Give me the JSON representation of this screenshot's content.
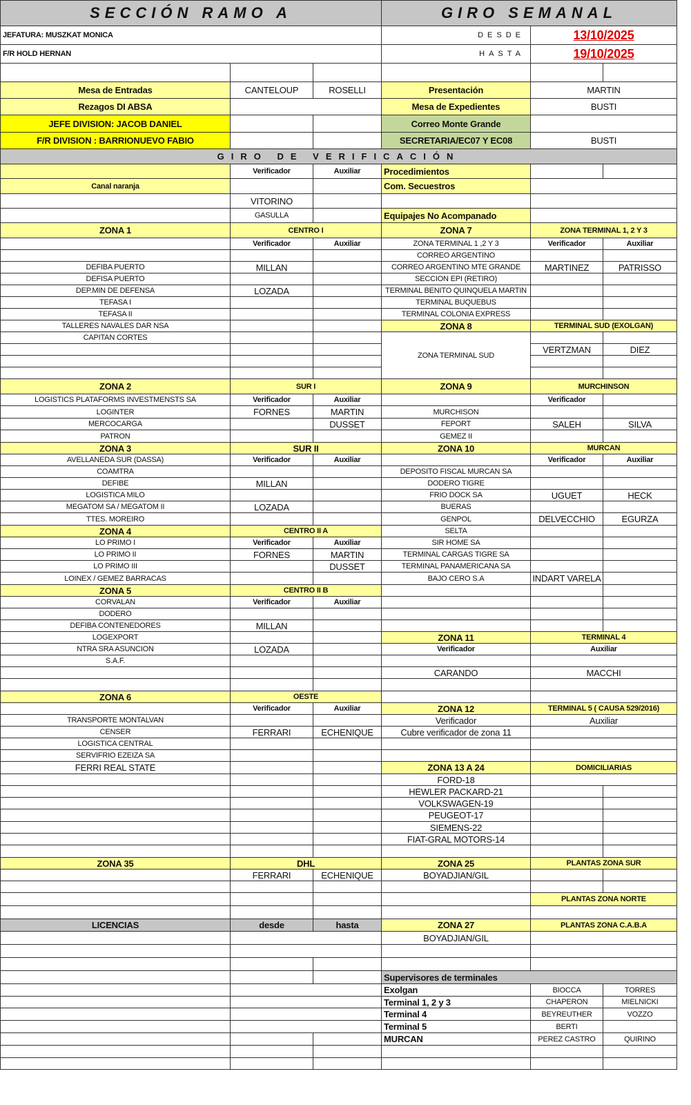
{
  "colors": {
    "light_yellow": "#ffff9c",
    "yellow": "#ffff00",
    "gray": "#c6c6c6",
    "green": "#c4d79b",
    "date_red": "#e00000"
  },
  "rows": [
    [
      "SECCIÓN RAMO  A",
      "GIRO SEMANAL"
    ],
    [
      "JEFATURA: MUSZKAT MONICA",
      "DESDE",
      "13/10/2025"
    ],
    [
      "F/R HOLD HERNAN",
      "HASTA",
      "19/10/2025"
    ],
    [
      "",
      "",
      "",
      "",
      "",
      ""
    ],
    [
      "Mesa de Entradas",
      "CANTELOUP",
      "ROSELLI",
      "Presentación",
      "MARTIN"
    ],
    [
      "Rezagos DI ABSA",
      "",
      "Mesa de Expedientes",
      "BUSTI"
    ],
    [
      "JEFE DIVISION: JACOB DANIEL",
      "",
      "",
      "Correo Monte Grande",
      ""
    ],
    [
      "F/R DIVISION : BARRIONUEVO FABIO",
      "",
      "",
      "SECRETARIA/EC07 Y EC08",
      "BUSTI"
    ],
    [
      "GIRO DE VERIFICACIÓN"
    ],
    [
      "",
      "Verificador",
      "Auxiliar",
      "Procedimientos",
      "",
      ""
    ],
    [
      "Canal naranja",
      "",
      "",
      "Com. Secuestros",
      ""
    ],
    [
      "",
      "VITORINO",
      "",
      "",
      ""
    ],
    [
      "",
      "GASULLA",
      "",
      "Equipajes No Acompanado",
      ""
    ],
    [
      "ZONA 1",
      "CENTRO I",
      "ZONA 7",
      "ZONA TERMINAL 1, 2 Y 3"
    ],
    [
      "",
      "Verificador",
      "Auxiliar",
      "ZONA TERMINAL 1 ,2 Y 3",
      "Verificador",
      "Auxiliar"
    ],
    [
      "",
      "",
      "",
      "CORREO ARGENTINO",
      "",
      ""
    ],
    [
      "DEFIBA PUERTO",
      "MILLAN",
      "",
      "CORREO ARGENTINO MTE GRANDE",
      "MARTINEZ",
      "PATRISSO"
    ],
    [
      "DEFISA PUERTO",
      "",
      "",
      "SECCION EPI (RETIRO)",
      "",
      ""
    ],
    [
      "DEP.MIN DE DEFENSA",
      "LOZADA",
      "",
      "TERMINAL BENITO QUINQUELA MARTIN",
      "",
      ""
    ],
    [
      "TEFASA I",
      "",
      "",
      "TERMINAL BUQUEBUS",
      "",
      ""
    ],
    [
      "TEFASA II",
      "",
      "",
      "TERMINAL COLONIA EXPRESS",
      "",
      ""
    ],
    [
      "TALLERES NAVALES DAR NSA",
      "",
      "",
      "ZONA 8",
      "TERMINAL SUD (EXOLGAN)"
    ],
    [
      "CAPITAN CORTES",
      "",
      "",
      "ZONA TERMINAL SUD",
      "",
      ""
    ],
    [
      "",
      "",
      "",
      "VERTZMAN",
      "DIEZ"
    ],
    [
      "",
      "",
      "",
      "",
      ""
    ],
    [
      "",
      "",
      "",
      "",
      ""
    ],
    [
      "ZONA 2",
      "SUR I",
      "ZONA 9",
      "MURCHINSON"
    ],
    [
      "LOGISTICS PLATAFORMS INVESTMENSTS SA",
      "Verificador",
      "Auxiliar",
      "",
      "Verificador",
      ""
    ],
    [
      "LOGINTER",
      "FORNES",
      "MARTIN",
      "MURCHISON",
      "",
      ""
    ],
    [
      "MERCOCARGA",
      "",
      "DUSSET",
      "FEPORT",
      "SALEH",
      "SILVA"
    ],
    [
      "PATRON",
      "",
      "",
      "GEMEZ II",
      "",
      ""
    ],
    [
      "ZONA 3",
      "SUR II",
      "ZONA 10",
      "MURCAN"
    ],
    [
      "AVELLANEDA SUR (DASSA)",
      "Verificador",
      "Auxiliar",
      "",
      "Verificador",
      "Auxiliar"
    ],
    [
      "COAMTRA",
      "",
      "",
      "DEPOSITO FISCAL MURCAN SA",
      "",
      ""
    ],
    [
      "DEFIBE",
      "MILLAN",
      "",
      "DODERO TIGRE",
      "",
      ""
    ],
    [
      "LOGISTICA MILO",
      "",
      "",
      "FRIO DOCK SA",
      "UGUET",
      "HECK"
    ],
    [
      "MEGATOM SA / MEGATOM II",
      "LOZADA",
      "",
      "BUERAS",
      "",
      ""
    ],
    [
      "TTES. MOREIRO",
      "",
      "",
      "GENPOL",
      "DELVECCHIO",
      "EGURZA"
    ],
    [
      "ZONA 4",
      "CENTRO II A",
      "SELTA",
      "",
      ""
    ],
    [
      "LO PRIMO I",
      "Verificador",
      "Auxiliar",
      "SIR HOME SA",
      "",
      ""
    ],
    [
      "LO PRIMO II",
      "FORNES",
      "MARTIN",
      "TERMINAL CARGAS TIGRE SA",
      "",
      ""
    ],
    [
      "LO PRIMO III",
      "",
      "DUSSET",
      "TERMINAL PANAMERICANA SA",
      "",
      ""
    ],
    [
      "LOINEX / GEMEZ BARRACAS",
      "",
      "",
      "BAJO CERO S.A",
      "INDART VARELA",
      ""
    ],
    [
      "ZONA 5",
      "CENTRO II B",
      "",
      "",
      ""
    ],
    [
      "CORVALAN",
      "Verificador",
      "Auxiliar",
      "",
      "",
      ""
    ],
    [
      "DODERO",
      "",
      "",
      "",
      "",
      ""
    ],
    [
      "DEFIBA CONTENEDORES",
      "MILLAN",
      "",
      "",
      "",
      ""
    ],
    [
      "LOGEXPORT",
      "",
      "",
      "ZONA 11",
      "TERMINAL 4"
    ],
    [
      "NTRA SRA ASUNCION",
      "LOZADA",
      "",
      "Verificador",
      "Auxiliar"
    ],
    [
      "S.A.F.",
      "",
      "",
      "",
      ""
    ],
    [
      "",
      "",
      "",
      "CARANDO",
      "MACCHI"
    ],
    [
      "",
      "",
      "",
      "",
      ""
    ],
    [
      "ZONA 6",
      "OESTE",
      "",
      ""
    ],
    [
      "",
      "Verificador",
      "Auxiliar",
      "ZONA 12",
      "TERMINAL 5 ( CAUSA 529/2016)"
    ],
    [
      "TRANSPORTE MONTALVAN",
      "",
      "",
      "Verificador",
      "Auxiliar"
    ],
    [
      "CENSER",
      "FERRARI",
      "ECHENIQUE",
      "Cubre verificador de zona 11",
      ""
    ],
    [
      "LOGISTICA CENTRAL",
      "",
      "",
      "",
      ""
    ],
    [
      "SERVIFRIO EZEIZA SA",
      "",
      "",
      "",
      ""
    ],
    [
      "FERRI REAL STATE",
      "",
      "",
      "ZONA 13 A 24",
      "DOMICILIARIAS"
    ],
    [
      "",
      "",
      "",
      "FORD-18",
      ""
    ],
    [
      "",
      "",
      "",
      "HEWLER PACKARD-21",
      "",
      ""
    ],
    [
      "",
      "",
      "",
      "VOLKSWAGEN-19",
      "",
      ""
    ],
    [
      "",
      "",
      "",
      "PEUGEOT-17",
      "",
      ""
    ],
    [
      "",
      "",
      "",
      "SIEMENS-22",
      "",
      ""
    ],
    [
      "",
      "",
      "",
      "FIAT-GRAL MOTORS-14",
      "",
      ""
    ],
    [
      "",
      "",
      "",
      "",
      "",
      ""
    ],
    [
      "ZONA 35",
      "DHL",
      "ZONA 25",
      "PLANTAS ZONA SUR"
    ],
    [
      "",
      "FERRARI",
      "ECHENIQUE",
      "BOYADJIAN/GIL",
      "",
      ""
    ],
    [
      "",
      "",
      "",
      "",
      "",
      ""
    ],
    [
      "",
      "",
      "",
      "",
      "PLANTAS ZONA NORTE"
    ],
    [
      "",
      "",
      "",
      "",
      ""
    ],
    [
      "LICENCIAS",
      "desde",
      "hasta",
      "ZONA 27",
      "PLANTAS ZONA C.A.B.A"
    ],
    [
      "",
      "",
      "BOYADJIAN/GIL",
      ""
    ],
    [
      "",
      "",
      "",
      ""
    ],
    [
      "",
      "",
      "",
      "",
      ""
    ],
    [
      "",
      "",
      "",
      "Supervisores de terminales"
    ],
    [
      "",
      "",
      "Exolgan",
      "BIOCCA",
      "TORRES"
    ],
    [
      "",
      "",
      "Terminal 1, 2 y 3",
      "CHAPERON",
      "MIELNICKI"
    ],
    [
      "",
      "",
      "Terminal  4",
      "BEYREUTHER",
      "VOZZO"
    ],
    [
      "",
      "",
      "Terminal 5",
      "BERTI",
      ""
    ],
    [
      "",
      "",
      "",
      "MURCAN",
      "PEREZ CASTRO",
      "QUIRINO"
    ],
    [
      "",
      "",
      "",
      "",
      "",
      ""
    ],
    [
      "",
      "",
      "",
      "",
      "",
      ""
    ]
  ]
}
